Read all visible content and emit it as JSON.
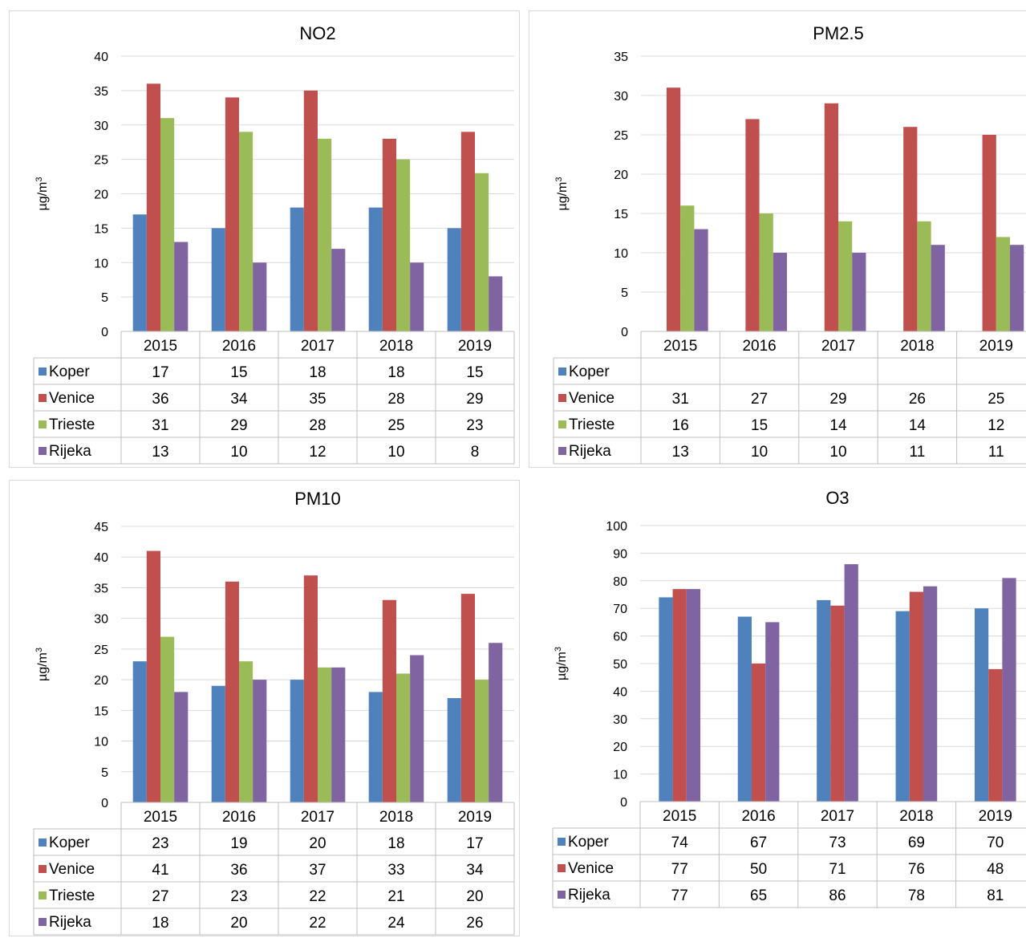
{
  "chart_data": [
    {
      "type": "bar",
      "title": "NO2",
      "ylabel": "µg/m3",
      "ylim": [
        0,
        40
      ],
      "yticks": [
        0,
        5,
        10,
        15,
        20,
        25,
        30,
        35,
        40
      ],
      "categories": [
        "2015",
        "2016",
        "2017",
        "2018",
        "2019"
      ],
      "series": [
        {
          "name": "Koper",
          "color": "#4f81bd",
          "values": [
            17,
            15,
            18,
            18,
            15
          ]
        },
        {
          "name": "Venice",
          "color": "#c0504d",
          "values": [
            36,
            34,
            35,
            28,
            29
          ]
        },
        {
          "name": "Trieste",
          "color": "#9bbb59",
          "values": [
            31,
            29,
            28,
            25,
            23
          ]
        },
        {
          "name": "Rijeka",
          "color": "#8064a2",
          "values": [
            13,
            10,
            12,
            10,
            8
          ]
        }
      ],
      "grid": true,
      "legend": "data table"
    },
    {
      "type": "bar",
      "title": "PM2.5",
      "ylabel": "µg/m3",
      "ylim": [
        0,
        35
      ],
      "yticks": [
        0,
        5,
        10,
        15,
        20,
        25,
        30,
        35
      ],
      "categories": [
        "2015",
        "2016",
        "2017",
        "2018",
        "2019"
      ],
      "series": [
        {
          "name": "Koper",
          "color": "#4f81bd",
          "values": [
            null,
            null,
            null,
            null,
            null
          ]
        },
        {
          "name": "Venice",
          "color": "#c0504d",
          "values": [
            31,
            27,
            29,
            26,
            25
          ]
        },
        {
          "name": "Trieste",
          "color": "#9bbb59",
          "values": [
            16,
            15,
            14,
            14,
            12
          ]
        },
        {
          "name": "Rijeka",
          "color": "#8064a2",
          "values": [
            13,
            10,
            10,
            11,
            11
          ]
        }
      ],
      "grid": true,
      "legend": "data table"
    },
    {
      "type": "bar",
      "title": "PM10",
      "ylabel": "µg/m3",
      "ylim": [
        0,
        45
      ],
      "yticks": [
        0,
        5,
        10,
        15,
        20,
        25,
        30,
        35,
        40,
        45
      ],
      "categories": [
        "2015",
        "2016",
        "2017",
        "2018",
        "2019"
      ],
      "series": [
        {
          "name": "Koper",
          "color": "#4f81bd",
          "values": [
            23,
            19,
            20,
            18,
            17
          ]
        },
        {
          "name": "Venice",
          "color": "#c0504d",
          "values": [
            41,
            36,
            37,
            33,
            34
          ]
        },
        {
          "name": "Trieste",
          "color": "#9bbb59",
          "values": [
            27,
            23,
            22,
            21,
            20
          ]
        },
        {
          "name": "Rijeka",
          "color": "#8064a2",
          "values": [
            18,
            20,
            22,
            24,
            26
          ]
        }
      ],
      "grid": true,
      "legend": "data table"
    },
    {
      "type": "bar",
      "title": "O3",
      "ylabel": "µg/m3",
      "ylim": [
        0,
        100
      ],
      "yticks": [
        0,
        10,
        20,
        30,
        40,
        50,
        60,
        70,
        80,
        90,
        100
      ],
      "categories": [
        "2015",
        "2016",
        "2017",
        "2018",
        "2019"
      ],
      "series": [
        {
          "name": "Koper",
          "color": "#4f81bd",
          "values": [
            74,
            67,
            73,
            69,
            70
          ]
        },
        {
          "name": "Venice",
          "color": "#c0504d",
          "values": [
            77,
            50,
            71,
            76,
            48
          ]
        },
        {
          "name": "Rijeka",
          "color": "#8064a2",
          "values": [
            77,
            65,
            86,
            78,
            81
          ]
        }
      ],
      "grid": true,
      "legend": "data table"
    }
  ]
}
